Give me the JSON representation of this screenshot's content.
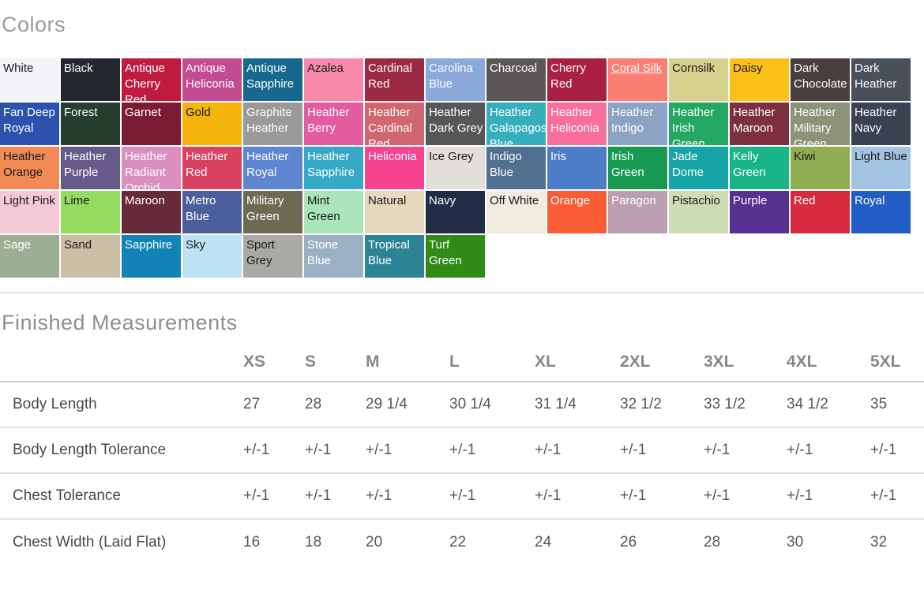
{
  "colors_section": {
    "title": "Colors",
    "swatches": [
      {
        "name": "White",
        "bg": "#f4f3f8",
        "fg": "#1a1a1a"
      },
      {
        "name": "Black",
        "bg": "#23282e",
        "fg": "#ffffff"
      },
      {
        "name": "Antique Cherry Red",
        "bg": "#be1b3f",
        "fg": "#ffffff"
      },
      {
        "name": "Antique Heliconia",
        "bg": "#c34b92",
        "fg": "#ffffff"
      },
      {
        "name": "Antique Sapphire",
        "bg": "#16688e",
        "fg": "#ffffff"
      },
      {
        "name": "Azalea",
        "bg": "#f68aa8",
        "fg": "#1a1a1a"
      },
      {
        "name": "Cardinal Red",
        "bg": "#9d2a43",
        "fg": "#ffffff"
      },
      {
        "name": "Carolina Blue",
        "bg": "#8aa9da",
        "fg": "#ffffff"
      },
      {
        "name": "Charcoal",
        "bg": "#5d5657",
        "fg": "#ffffff"
      },
      {
        "name": "Cherry Red",
        "bg": "#aa2043",
        "fg": "#ffffff"
      },
      {
        "name": "Coral Silk",
        "bg": "#fb7e72",
        "fg": "#ffffff",
        "underline": true
      },
      {
        "name": "Cornsilk",
        "bg": "#d6d28d",
        "fg": "#1a1a1a"
      },
      {
        "name": "Daisy",
        "bg": "#fcc119",
        "fg": "#1a1a1a"
      },
      {
        "name": "Dark Chocolate",
        "bg": "#493f3d",
        "fg": "#ffffff"
      },
      {
        "name": "Dark Heather",
        "bg": "#49505a",
        "fg": "#ffffff"
      },
      {
        "name": "Fan Deep Royal",
        "bg": "#2c52ad",
        "fg": "#ffffff"
      },
      {
        "name": "Forest",
        "bg": "#263e2e",
        "fg": "#ffffff"
      },
      {
        "name": "Garnet",
        "bg": "#7b1c34",
        "fg": "#ffffff"
      },
      {
        "name": "Gold",
        "bg": "#f5b50c",
        "fg": "#1a1a1a"
      },
      {
        "name": "Graphite Heather",
        "bg": "#9c999b",
        "fg": "#ffffff"
      },
      {
        "name": "Heather Berry",
        "bg": "#e35ca0",
        "fg": "#ffffff"
      },
      {
        "name": "Heather Cardinal Red",
        "bg": "#d0666f",
        "fg": "#ffffff"
      },
      {
        "name": "Heather Dark Grey",
        "bg": "#555759",
        "fg": "#ffffff"
      },
      {
        "name": "Heather Galapagos Blue",
        "bg": "#36aebe",
        "fg": "#ffffff"
      },
      {
        "name": "Heather Heliconia",
        "bg": "#f96f9b",
        "fg": "#ffffff"
      },
      {
        "name": "Heather Indigo",
        "bg": "#8ba4c4",
        "fg": "#ffffff"
      },
      {
        "name": "Heather Irish Green",
        "bg": "#23a763",
        "fg": "#ffffff"
      },
      {
        "name": "Heather Maroon",
        "bg": "#7d3140",
        "fg": "#ffffff"
      },
      {
        "name": "Heather Military Green",
        "bg": "#8c9378",
        "fg": "#ffffff"
      },
      {
        "name": "Heather Navy",
        "bg": "#3a4150",
        "fg": "#ffffff"
      },
      {
        "name": "Heather Orange",
        "bg": "#f28a55",
        "fg": "#1a1a1a"
      },
      {
        "name": "Heather Purple",
        "bg": "#655a8a",
        "fg": "#ffffff"
      },
      {
        "name": "Heather Radiant Orchid",
        "bg": "#da8fc0",
        "fg": "#ffffff"
      },
      {
        "name": "Heather Red",
        "bg": "#d84260",
        "fg": "#ffffff"
      },
      {
        "name": "Heather Royal",
        "bg": "#5e86d0",
        "fg": "#ffffff"
      },
      {
        "name": "Heather Sapphire",
        "bg": "#35a9c6",
        "fg": "#ffffff"
      },
      {
        "name": "Heliconia",
        "bg": "#f54390",
        "fg": "#ffffff"
      },
      {
        "name": "Ice Grey",
        "bg": "#e2ded9",
        "fg": "#1a1a1a"
      },
      {
        "name": "Indigo Blue",
        "bg": "#516f8e",
        "fg": "#ffffff"
      },
      {
        "name": "Iris",
        "bg": "#4e7dc7",
        "fg": "#ffffff"
      },
      {
        "name": "Irish Green",
        "bg": "#189a52",
        "fg": "#ffffff"
      },
      {
        "name": "Jade Dome",
        "bg": "#16a4a6",
        "fg": "#ffffff"
      },
      {
        "name": "Kelly Green",
        "bg": "#19b588",
        "fg": "#ffffff"
      },
      {
        "name": "Kiwi",
        "bg": "#90ad52",
        "fg": "#1a1a1a"
      },
      {
        "name": "Light Blue",
        "bg": "#a3c3e2",
        "fg": "#1a1a1a"
      },
      {
        "name": "Light Pink",
        "bg": "#f3c9d5",
        "fg": "#1a1a1a"
      },
      {
        "name": "Lime",
        "bg": "#94dc5f",
        "fg": "#1a1a1a"
      },
      {
        "name": "Maroon",
        "bg": "#662a3b",
        "fg": "#ffffff"
      },
      {
        "name": "Metro Blue",
        "bg": "#4d5e9d",
        "fg": "#ffffff"
      },
      {
        "name": "Military Green",
        "bg": "#6b6b54",
        "fg": "#ffffff"
      },
      {
        "name": "Mint Green",
        "bg": "#aae5bc",
        "fg": "#1a1a1a"
      },
      {
        "name": "Natural",
        "bg": "#e5d9c0",
        "fg": "#1a1a1a"
      },
      {
        "name": "Navy",
        "bg": "#212c45",
        "fg": "#ffffff"
      },
      {
        "name": "Off White",
        "bg": "#f0ecdf",
        "fg": "#1a1a1a"
      },
      {
        "name": "Orange",
        "bg": "#fa5d35",
        "fg": "#ffffff"
      },
      {
        "name": "Paragon",
        "bg": "#bc9eb1",
        "fg": "#ffffff"
      },
      {
        "name": "Pistachio",
        "bg": "#cddcb4",
        "fg": "#1a1a1a"
      },
      {
        "name": "Purple",
        "bg": "#573190",
        "fg": "#ffffff"
      },
      {
        "name": "Red",
        "bg": "#d62b3f",
        "fg": "#ffffff"
      },
      {
        "name": "Royal",
        "bg": "#225cc5",
        "fg": "#ffffff"
      },
      {
        "name": "Sage",
        "bg": "#9cae93",
        "fg": "#ffffff"
      },
      {
        "name": "Sand",
        "bg": "#cbbea6",
        "fg": "#1a1a1a"
      },
      {
        "name": "Sapphire",
        "bg": "#1184b5",
        "fg": "#ffffff"
      },
      {
        "name": "Sky",
        "bg": "#bee2f5",
        "fg": "#1a1a1a"
      },
      {
        "name": "Sport Grey",
        "bg": "#aaa9a5",
        "fg": "#1a1a1a"
      },
      {
        "name": "Stone Blue",
        "bg": "#9cb0c3",
        "fg": "#ffffff"
      },
      {
        "name": "Tropical Blue",
        "bg": "#2c8394",
        "fg": "#ffffff"
      },
      {
        "name": "Turf Green",
        "bg": "#2f8a16",
        "fg": "#ffffff"
      }
    ]
  },
  "measurements_section": {
    "title": "Finished Measurements",
    "sizes": [
      "XS",
      "S",
      "M",
      "L",
      "XL",
      "2XL",
      "3XL",
      "4XL",
      "5XL"
    ],
    "rows": [
      {
        "label": "Body Length",
        "values": [
          "27",
          "28",
          "29 1/4",
          "30 1/4",
          "31 1/4",
          "32 1/2",
          "33 1/2",
          "34 1/2",
          "35"
        ]
      },
      {
        "label": "Body Length Tolerance",
        "values": [
          "+/-1",
          "+/-1",
          "+/-1",
          "+/-1",
          "+/-1",
          "+/-1",
          "+/-1",
          "+/-1",
          "+/-1"
        ]
      },
      {
        "label": "Chest Tolerance",
        "values": [
          "+/-1",
          "+/-1",
          "+/-1",
          "+/-1",
          "+/-1",
          "+/-1",
          "+/-1",
          "+/-1",
          "+/-1"
        ]
      },
      {
        "label": "Chest Width (Laid Flat)",
        "values": [
          "16",
          "18",
          "20",
          "22",
          "24",
          "26",
          "28",
          "30",
          "32"
        ]
      }
    ]
  }
}
